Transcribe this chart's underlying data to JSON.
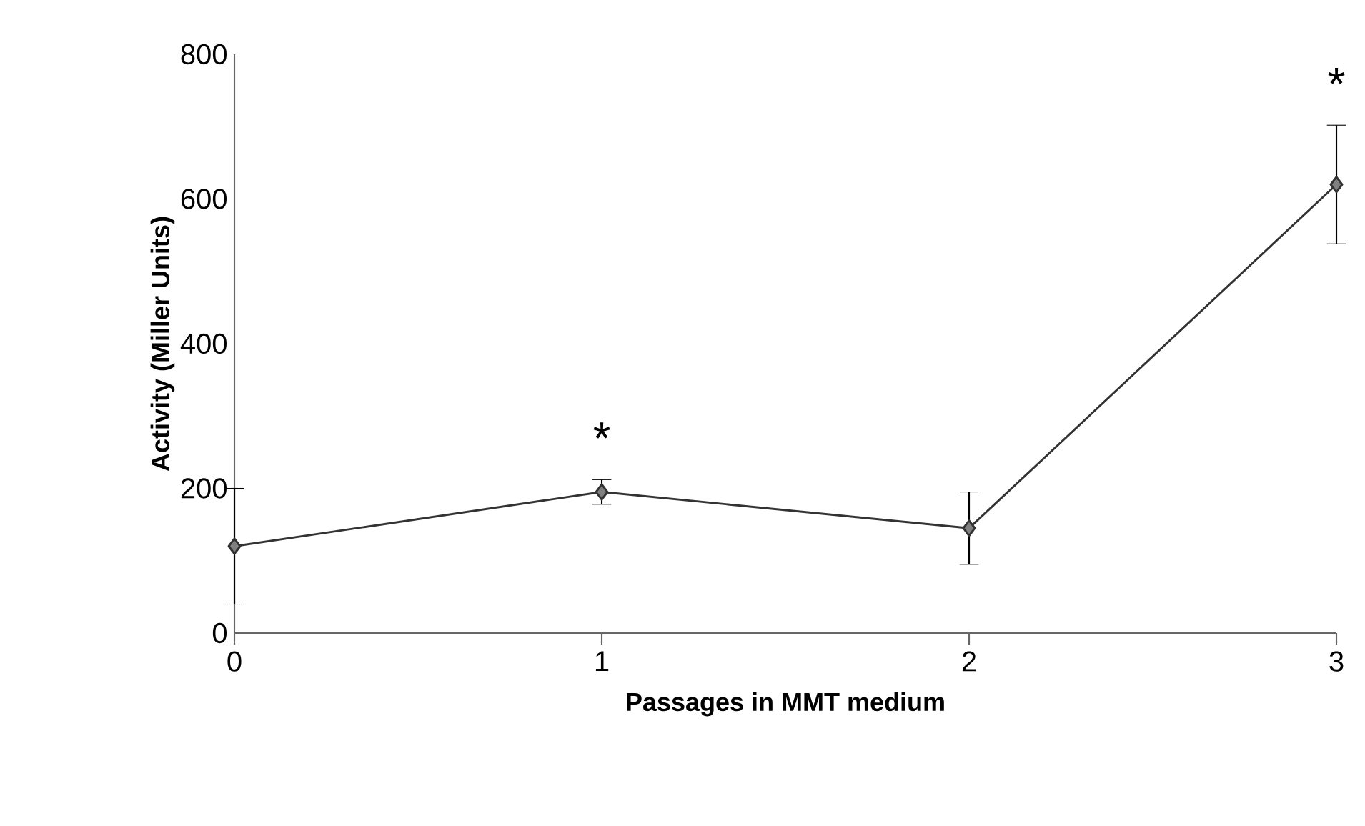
{
  "chart_data": {
    "type": "line",
    "xlabel": "Passages in MMT medium",
    "ylabel": "Activity (Miller Units)",
    "x": [
      0,
      1,
      2,
      3
    ],
    "series": [
      {
        "color": "#333333",
        "values": [
          120,
          195,
          145,
          620
        ],
        "errors": [
          80,
          17,
          50,
          82
        ]
      }
    ],
    "xlim": [
      0,
      3
    ],
    "xticks": [
      0,
      1,
      2,
      3
    ],
    "ylim": [
      0,
      800
    ],
    "yticks": [
      0,
      200,
      400,
      600,
      800
    ],
    "marker": "diamond",
    "line_style": "solid",
    "annotations": [
      {
        "text": "*",
        "x": 1,
        "y": 212
      },
      {
        "text": "*",
        "x": 3,
        "y": 702
      }
    ]
  }
}
